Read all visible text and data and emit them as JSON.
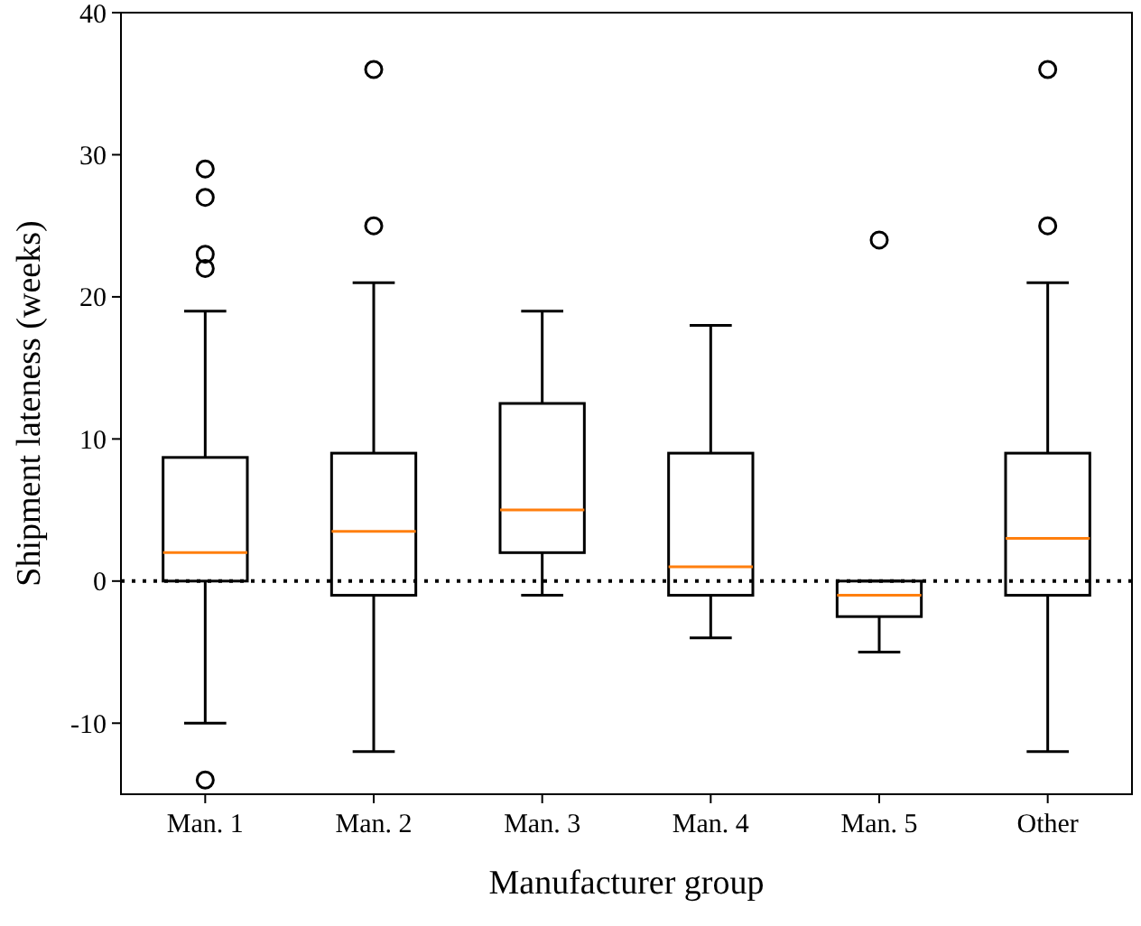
{
  "chart_data": {
    "type": "box",
    "xlabel": "Manufacturer group",
    "ylabel": "Shipment lateness (weeks)",
    "categories": [
      "Man. 1",
      "Man. 2",
      "Man. 3",
      "Man. 4",
      "Man. 5",
      "Other"
    ],
    "boxes": [
      {
        "low": -10,
        "q1": 0,
        "median": 2,
        "q3": 8.7,
        "high": 19,
        "outliers": [
          22,
          23,
          27,
          29,
          -14
        ]
      },
      {
        "low": -12,
        "q1": -1,
        "median": 3.5,
        "q3": 9,
        "high": 21,
        "outliers": [
          25,
          36
        ]
      },
      {
        "low": -1,
        "q1": 2,
        "median": 5,
        "q3": 12.5,
        "high": 19
      },
      {
        "low": -4,
        "q1": -1,
        "median": 1,
        "q3": 9,
        "high": 18
      },
      {
        "low": -5,
        "q1": -2.5,
        "median": -1,
        "q3": 0,
        "high": 0,
        "outliers": [
          24
        ]
      },
      {
        "low": -12,
        "q1": -1,
        "median": 3,
        "q3": 9,
        "high": 21,
        "outliers": [
          25,
          36
        ]
      }
    ],
    "color": "#000000",
    "ylim": [
      -15,
      40
    ],
    "yticks": [
      -10,
      0,
      10,
      20,
      30,
      40
    ],
    "grid": false,
    "ref_lines": [
      {
        "axis": "y",
        "value": 0,
        "color": "#000000",
        "line_style": "dotted"
      }
    ]
  }
}
